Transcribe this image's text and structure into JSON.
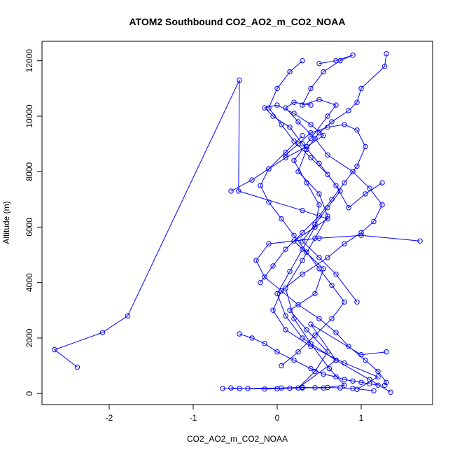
{
  "chart_data": {
    "type": "line",
    "title": "ATOM2 Southbound CO2_AO2_m_CO2_NOAA",
    "xlabel": "CO2_AO2_m_CO2_NOAA",
    "ylabel": "Altitude (m)",
    "xlim": [
      -2.8,
      1.85
    ],
    "ylim": [
      -400,
      12700
    ],
    "x_ticks": [
      -2,
      -1,
      0,
      1
    ],
    "y_ticks": [
      0,
      2000,
      4000,
      6000,
      8000,
      10000,
      12000
    ],
    "grid": false,
    "series_color": "#0000ff",
    "marker": "open-circle",
    "series": [
      {
        "x": [
          -0.65,
          -0.45,
          0.05,
          0.3,
          0.55,
          0.8,
          0.62,
          0.4,
          0.2,
          0.1,
          0.3,
          0.45,
          0.6,
          0.5,
          0.25,
          0.35,
          0.5,
          0.65,
          0.85,
          0.95,
          1.0,
          1.28,
          1.3
        ],
        "y": [
          180,
          180,
          200,
          220,
          200,
          300,
          900,
          1800,
          2700,
          3800,
          4800,
          5600,
          6400,
          7200,
          8000,
          8800,
          9400,
          9800,
          10200,
          10500,
          11000,
          11800,
          12250
        ]
      },
      {
        "x": [
          1.35,
          1.1,
          0.7,
          0.3,
          0.1,
          0.0,
          0.15,
          0.3,
          0.45,
          0.5,
          0.35,
          0.2,
          0.4,
          0.6,
          0.7,
          0.5,
          0.3,
          0.4,
          0.55,
          0.75,
          0.9,
          0.7,
          0.5
        ],
        "y": [
          50,
          500,
          1200,
          2000,
          2800,
          3600,
          4400,
          5200,
          6000,
          6800,
          7600,
          8400,
          9200,
          10000,
          10400,
          10600,
          10400,
          11000,
          11600,
          12000,
          12200,
          12000,
          11900
        ]
      },
      {
        "x": [
          -2.38,
          -2.65,
          -2.08,
          -1.78,
          -0.45,
          -0.46,
          0.3,
          0.6,
          0.2,
          0.55,
          0.45,
          0.15,
          0.35,
          0.6,
          0.45,
          0.25,
          0.7,
          0.4,
          1.0,
          1.3
        ],
        "y": [
          950,
          1580,
          2200,
          2800,
          11300,
          7300,
          6600,
          6300,
          5500,
          4500,
          3600,
          3000,
          2300,
          1500,
          800,
          200,
          1200,
          2500,
          1400,
          1500
        ]
      },
      {
        "x": [
          0.95,
          1.2,
          0.8,
          0.4,
          0.1,
          -0.05,
          0.05,
          0.3,
          0.6,
          0.8,
          1.0,
          1.15,
          1.25,
          1.1,
          0.9,
          0.6,
          0.45,
          0.25,
          0.1,
          0.2,
          0.4
        ],
        "y": [
          150,
          600,
          1100,
          1700,
          2300,
          3000,
          3700,
          4300,
          4900,
          5400,
          5800,
          6200,
          6800,
          7400,
          8000,
          8600,
          9200,
          9800,
          10300,
          10500,
          10400
        ]
      },
      {
        "x": [
          1.7,
          1.0,
          0.5,
          -0.1,
          -0.25,
          -0.15,
          0.05,
          0.25,
          0.5,
          0.7,
          0.85,
          1.05,
          1.2,
          1.3,
          1.28
        ],
        "y": [
          5500,
          5700,
          5600,
          5400,
          4800,
          4200,
          3700,
          3200,
          2700,
          2200,
          1700,
          1200,
          800,
          400,
          300
        ]
      },
      {
        "x": [
          -0.55,
          -0.3,
          -0.1,
          0.1,
          0.35,
          0.55,
          0.4,
          0.2,
          0.0,
          -0.15,
          -0.05,
          0.15,
          0.3,
          0.5,
          0.7,
          0.85,
          1.05,
          1.25
        ],
        "y": [
          7300,
          7700,
          8100,
          8500,
          8900,
          9300,
          9700,
          10100,
          10400,
          10300,
          10000,
          9600,
          9000,
          8300,
          7500,
          6700,
          7200,
          7600
        ]
      },
      {
        "x": [
          -0.45,
          -0.3,
          -0.15,
          0.0,
          0.2,
          0.4,
          0.55,
          0.7,
          0.8,
          0.9,
          1.0,
          1.1,
          1.2
        ],
        "y": [
          2150,
          2000,
          1800,
          1500,
          1200,
          900,
          700,
          600,
          500,
          450,
          400,
          350,
          300
        ]
      },
      {
        "x": [
          -0.55,
          -0.35,
          -0.15,
          0.0,
          0.15,
          0.3,
          0.45,
          0.6,
          0.75,
          0.9,
          1.15
        ],
        "y": [
          200,
          180,
          160,
          170,
          190,
          200,
          210,
          220,
          200,
          180,
          100
        ]
      },
      {
        "x": [
          -0.2,
          -0.05,
          0.1,
          0.3,
          0.5,
          0.65,
          0.8,
          0.95,
          1.05,
          0.95,
          0.8,
          0.6,
          0.4,
          0.25,
          0.1
        ],
        "y": [
          4000,
          4600,
          5200,
          5800,
          6400,
          7000,
          7600,
          8200,
          8900,
          9500,
          9700,
          9600,
          9400,
          9000,
          8600
        ]
      },
      {
        "x": [
          0.3,
          0.15,
          0.0,
          -0.1,
          0.05,
          0.2,
          0.4,
          0.6,
          0.75,
          0.6,
          0.45,
          0.3,
          0.5,
          0.7,
          0.95
        ],
        "y": [
          12000,
          11600,
          11000,
          10300,
          9700,
          9100,
          8500,
          7900,
          7300,
          6700,
          6100,
          5500,
          4900,
          4300,
          3300
        ]
      },
      {
        "x": [
          0.05,
          0.25,
          0.45,
          0.65,
          0.8,
          0.65,
          0.5,
          0.35,
          0.2,
          0.05,
          -0.1,
          -0.2,
          -0.1,
          0.1,
          0.3
        ],
        "y": [
          1000,
          1500,
          2100,
          2700,
          3300,
          3900,
          4500,
          5100,
          5700,
          6300,
          6900,
          7500,
          8100,
          8700,
          9300
        ]
      }
    ]
  }
}
